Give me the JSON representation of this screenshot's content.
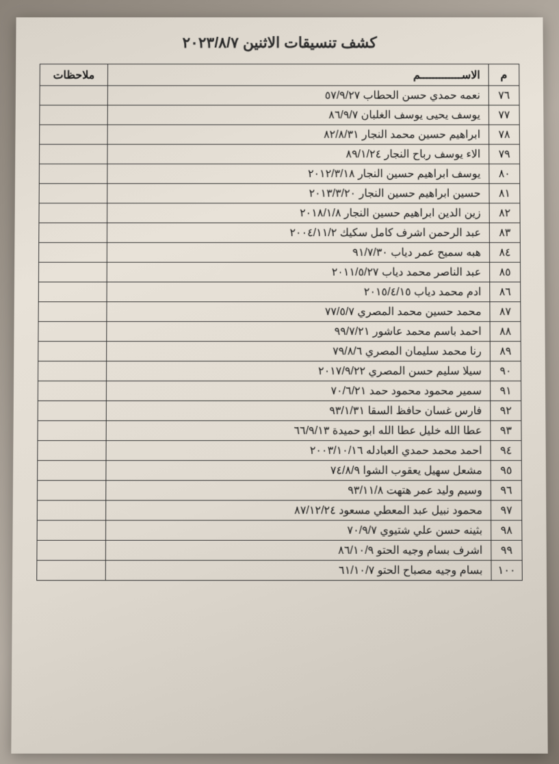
{
  "title": "كشف تنسيقات الاثنين ٢٠٢٣/٨/٧",
  "columns": {
    "num": "م",
    "name": "الاســـــــــــــم",
    "notes": "ملاحظات"
  },
  "rows": [
    {
      "num": "٧٦",
      "name": "نعمه حمدي حسن الحطاب ٥٧/٩/٢٧",
      "notes": ""
    },
    {
      "num": "٧٧",
      "name": "يوسف يحيى يوسف الغلبان ٨٦/٩/٧",
      "notes": ""
    },
    {
      "num": "٧٨",
      "name": "ابراهيم حسين محمد النجار ٨٢/٨/٣١",
      "notes": ""
    },
    {
      "num": "٧٩",
      "name": "الاء يوسف رباح النجار ٨٩/١/٢٤",
      "notes": ""
    },
    {
      "num": "٨٠",
      "name": "يوسف ابراهيم حسين النجار ٢٠١٢/٣/١٨",
      "notes": ""
    },
    {
      "num": "٨١",
      "name": "حسين ابراهيم حسين النجار ٢٠١٣/٣/٢٠",
      "notes": ""
    },
    {
      "num": "٨٢",
      "name": "زين الدين ابراهيم حسين النجار ٢٠١٨/١/٨",
      "notes": ""
    },
    {
      "num": "٨٣",
      "name": "عبد الرحمن اشرف كامل سكيك ٢٠٠٤/١١/٢",
      "notes": ""
    },
    {
      "num": "٨٤",
      "name": "هبه سميح عمر دياب ٩١/٧/٣٠",
      "notes": ""
    },
    {
      "num": "٨٥",
      "name": "عبد الناصر محمد دياب ٢٠١١/٥/٢٧",
      "notes": ""
    },
    {
      "num": "٨٦",
      "name": "ادم محمد دياب ٢٠١٥/٤/١٥",
      "notes": ""
    },
    {
      "num": "٨٧",
      "name": "محمد حسين محمد المصري ٧٧/٥/٧",
      "notes": ""
    },
    {
      "num": "٨٨",
      "name": "احمد باسم محمد عاشور ٩٩/٧/٢١",
      "notes": ""
    },
    {
      "num": "٨٩",
      "name": "رنا محمد سليمان المصري ٧٩/٨/٦",
      "notes": ""
    },
    {
      "num": "٩٠",
      "name": "سيلا سليم حسن المصري ٢٠١٧/٩/٢٢",
      "notes": ""
    },
    {
      "num": "٩١",
      "name": "سمير محمود محمود حمد ٧٠/٦/٢١",
      "notes": ""
    },
    {
      "num": "٩٢",
      "name": "فارس غسان حافظ السقا ٩٣/١/٣١",
      "notes": ""
    },
    {
      "num": "٩٣",
      "name": "عطا الله خليل عطا الله ابو حميدة ٦٦/٩/١٣",
      "notes": ""
    },
    {
      "num": "٩٤",
      "name": "احمد محمد حمدي العبادله ٢٠٠٣/١٠/١٦",
      "notes": ""
    },
    {
      "num": "٩٥",
      "name": "مشعل سهيل يعقوب الشوا ٧٤/٨/٩",
      "notes": ""
    },
    {
      "num": "٩٦",
      "name": "وسيم وليد عمر هتهت ٩٣/١١/٨",
      "notes": ""
    },
    {
      "num": "٩٧",
      "name": "محمود نبيل عبد المعطي مسعود ٨٧/١٢/٢٤",
      "notes": ""
    },
    {
      "num": "٩٨",
      "name": "بثينه حسن علي شتيوي ٧٠/٩/٧",
      "notes": ""
    },
    {
      "num": "٩٩",
      "name": "اشرف بسام وجيه الحتو ٨٦/١٠/٩",
      "notes": ""
    },
    {
      "num": "١٠٠",
      "name": "بسام وجيه مصباح الحتو ٦١/١٠/٧",
      "notes": ""
    }
  ]
}
